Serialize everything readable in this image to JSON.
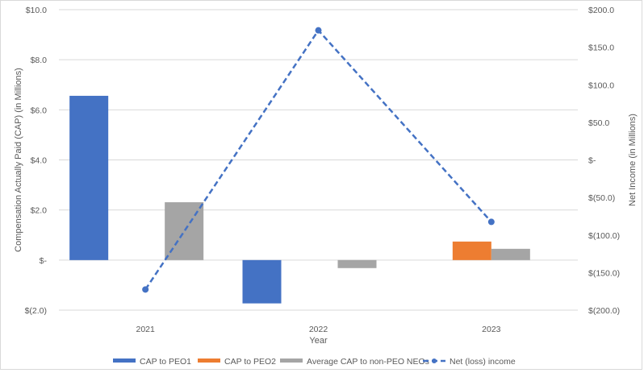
{
  "chart_data": {
    "type": "bar",
    "title": "",
    "xlabel": "Year",
    "ylabel": "Compensation Actually Paid (CAP) (in Millions)",
    "y2label": "Net Income (in Millions)",
    "categories": [
      "2021",
      "2022",
      "2023"
    ],
    "ylim": [
      -2.0,
      10.0
    ],
    "y2lim": [
      -200.0,
      200.0
    ],
    "y_ticks": [
      "$(2.0)",
      "$-",
      "$2.0",
      "$4.0",
      "$6.0",
      "$8.0",
      "$10.0"
    ],
    "y_tick_values": [
      -2,
      0,
      2,
      4,
      6,
      8,
      10
    ],
    "y2_ticks": [
      "$(200.0)",
      "$(150.0)",
      "$(100.0)",
      "$(50.0)",
      "$-",
      "$50.0",
      "$100.0",
      "$150.0",
      "$200.0"
    ],
    "y2_tick_values": [
      -200,
      -150,
      -100,
      -50,
      0,
      50,
      100,
      150,
      200
    ],
    "grid": true,
    "legend_position": "bottom",
    "series": [
      {
        "name": "CAP to PEO1",
        "type": "bar",
        "axis": "left",
        "color": "#4472C4",
        "values": [
          6.56,
          -1.73,
          null
        ]
      },
      {
        "name": "CAP to PEO2",
        "type": "bar",
        "axis": "left",
        "color": "#ED7D31",
        "values": [
          null,
          null,
          0.74
        ]
      },
      {
        "name": "Average CAP to non-PEO NEOs",
        "type": "bar",
        "axis": "left",
        "color": "#A5A5A5",
        "values": [
          2.31,
          -0.32,
          0.45
        ]
      },
      {
        "name": "Net (loss) income",
        "type": "line",
        "axis": "right",
        "style": "dashed",
        "marker": "circle",
        "color": "#4472C4",
        "values": [
          -172.5,
          172.5,
          -82.5
        ]
      }
    ]
  }
}
